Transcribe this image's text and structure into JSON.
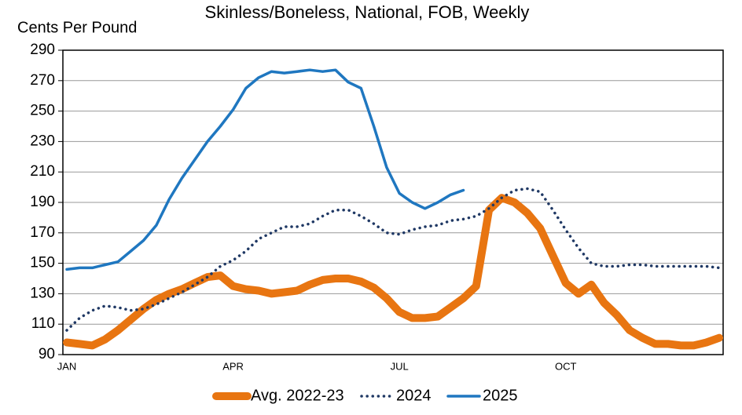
{
  "chart_data": {
    "type": "line",
    "title": "Skinless/Boneless, National, FOB, Weekly",
    "y_label": "Cents Per Pound",
    "categories": [
      "JAN",
      null,
      null,
      null,
      null,
      null,
      null,
      null,
      null,
      null,
      null,
      null,
      null,
      "APR",
      null,
      null,
      null,
      null,
      null,
      null,
      null,
      null,
      null,
      null,
      null,
      null,
      "JUL",
      null,
      null,
      null,
      null,
      null,
      null,
      null,
      null,
      null,
      null,
      null,
      null,
      "OCT",
      null,
      null,
      null,
      null,
      null,
      null,
      null,
      null,
      null,
      null,
      null,
      null
    ],
    "series": [
      {
        "name": "Avg. 2022-23",
        "color": "#e87511",
        "dash": "solid",
        "values": [
          98,
          97,
          96,
          100,
          106,
          113,
          120,
          126,
          130,
          133,
          137,
          141,
          142,
          135,
          133,
          132,
          130,
          131,
          132,
          136,
          139,
          140,
          140,
          138,
          134,
          127,
          118,
          114,
          114,
          115,
          121,
          127,
          135,
          185,
          193,
          190,
          183,
          173,
          155,
          137,
          130,
          136,
          124,
          116,
          106,
          101,
          97,
          97,
          96,
          96,
          98,
          101
        ]
      },
      {
        "name": "2024",
        "color": "#1f3864",
        "dash": "dotted",
        "values": [
          106,
          114,
          119,
          122,
          121,
          119,
          120,
          123,
          127,
          131,
          136,
          141,
          148,
          152,
          158,
          166,
          170,
          174,
          174,
          176,
          181,
          185,
          185,
          181,
          176,
          170,
          169,
          172,
          174,
          175,
          178,
          179,
          181,
          186,
          193,
          198,
          199,
          197,
          185,
          172,
          160,
          150,
          148,
          148,
          149,
          149,
          148,
          148,
          148,
          148,
          148,
          147
        ]
      },
      {
        "name": "2025",
        "color": "#1f77c0",
        "dash": "solid",
        "values": [
          146,
          147,
          147,
          149,
          151,
          158,
          165,
          175,
          192,
          206,
          218,
          230,
          240,
          251,
          265,
          272,
          276,
          275,
          276,
          277,
          276,
          277,
          269,
          265,
          240,
          213,
          196,
          190,
          186,
          190,
          195,
          198,
          null,
          null,
          null,
          null,
          null,
          null,
          null,
          null,
          null,
          null,
          null,
          null,
          null,
          null,
          null,
          null,
          null,
          null,
          null,
          null
        ]
      }
    ],
    "ylim": [
      90,
      290
    ],
    "yticks": [
      90,
      110,
      130,
      150,
      170,
      190,
      210,
      230,
      250,
      270,
      290
    ],
    "grid": true,
    "legend": "bottom"
  }
}
